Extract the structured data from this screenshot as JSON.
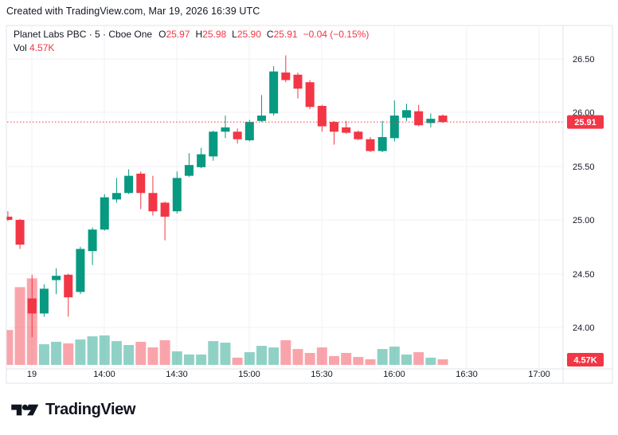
{
  "header": {
    "attribution": "Created with TradingView.com, Mar 19, 2026 16:39 UTC"
  },
  "legend": {
    "title": "Planet Labs PBC · 5 · Cboe One",
    "ohlc": [
      {
        "label": "O",
        "value": "25.97"
      },
      {
        "label": "H",
        "value": "25.98"
      },
      {
        "label": "L",
        "value": "25.90"
      },
      {
        "label": "C",
        "value": "25.91"
      }
    ],
    "change": "−0.04 (−0.15%)",
    "vol_label": "Vol",
    "vol_value": "4.57K"
  },
  "footer": {
    "brand": "TradingView"
  },
  "colors": {
    "up": "#089981",
    "down": "#F23645",
    "up_vol": "rgba(8,153,129,0.45)",
    "down_vol": "rgba(242,54,69,0.45)",
    "text": "#131722",
    "grid": "#F0F1F4",
    "border": "#E0E3EB",
    "badge": "#F23645",
    "badge_text": "#ffffff",
    "background": "#ffffff"
  },
  "chart_data": {
    "type": "candlestick_with_volume",
    "title": "Planet Labs PBC",
    "interval": "5",
    "exchange": "Cboe One",
    "ylim": [
      23.61,
      26.81
    ],
    "grid": true,
    "last_price": 25.91,
    "last_price_label": "25.91",
    "last_volume_label": "4.57K",
    "price_ticks": [
      "26.50",
      "26.00",
      "25.50",
      "25.00",
      "24.50",
      "24.00"
    ],
    "time_ticks": [
      {
        "label": "19",
        "index": 2
      },
      {
        "label": "14:00",
        "index": 8
      },
      {
        "label": "14:30",
        "index": 14
      },
      {
        "label": "15:00",
        "index": 20
      },
      {
        "label": "15:30",
        "index": 26
      },
      {
        "label": "16:00",
        "index": 32
      },
      {
        "label": "16:30",
        "index": 38
      },
      {
        "label": "17:00",
        "index": 44
      }
    ],
    "volume_unit": "K",
    "candles": [
      {
        "t": "13:20",
        "o": 25.03,
        "h": 25.08,
        "l": 24.99,
        "c": 25.0,
        "v": 28.6
      },
      {
        "t": "13:25",
        "o": 25.0,
        "h": 25.01,
        "l": 24.73,
        "c": 24.77,
        "v": 63.7
      },
      {
        "t": "13:30",
        "o": 24.27,
        "h": 24.49,
        "l": 23.91,
        "c": 24.13,
        "v": 70.9
      },
      {
        "t": "13:35",
        "o": 24.13,
        "h": 24.4,
        "l": 24.1,
        "c": 24.36,
        "v": 16.9
      },
      {
        "t": "13:40",
        "o": 24.44,
        "h": 24.55,
        "l": 24.31,
        "c": 24.48,
        "v": 18.9
      },
      {
        "t": "13:45",
        "o": 24.49,
        "h": 24.5,
        "l": 24.1,
        "c": 24.28,
        "v": 17.6
      },
      {
        "t": "13:50",
        "o": 24.33,
        "h": 24.75,
        "l": 24.31,
        "c": 24.73,
        "v": 20.8
      },
      {
        "t": "13:55",
        "o": 24.71,
        "h": 24.93,
        "l": 24.58,
        "c": 24.91,
        "v": 23.4
      },
      {
        "t": "14:00",
        "o": 24.91,
        "h": 25.24,
        "l": 24.9,
        "c": 25.21,
        "v": 24.1
      },
      {
        "t": "14:05",
        "o": 25.19,
        "h": 25.39,
        "l": 25.16,
        "c": 25.25,
        "v": 19.5
      },
      {
        "t": "14:10",
        "o": 25.25,
        "h": 25.47,
        "l": 25.24,
        "c": 25.41,
        "v": 16.3
      },
      {
        "t": "14:15",
        "o": 25.43,
        "h": 25.45,
        "l": 25.1,
        "c": 25.25,
        "v": 18.9
      },
      {
        "t": "14:20",
        "o": 25.25,
        "h": 25.41,
        "l": 25.04,
        "c": 25.08,
        "v": 14.3
      },
      {
        "t": "14:25",
        "o": 25.16,
        "h": 25.17,
        "l": 24.81,
        "c": 25.03,
        "v": 20.2
      },
      {
        "t": "14:30",
        "o": 25.08,
        "h": 25.45,
        "l": 25.06,
        "c": 25.39,
        "v": 11.1
      },
      {
        "t": "14:35",
        "o": 25.41,
        "h": 25.62,
        "l": 25.4,
        "c": 25.51,
        "v": 8.5
      },
      {
        "t": "14:40",
        "o": 25.49,
        "h": 25.67,
        "l": 25.48,
        "c": 25.61,
        "v": 8.5
      },
      {
        "t": "14:45",
        "o": 25.59,
        "h": 25.83,
        "l": 25.55,
        "c": 25.82,
        "v": 19.5
      },
      {
        "t": "14:50",
        "o": 25.82,
        "h": 25.97,
        "l": 25.76,
        "c": 25.86,
        "v": 18.2
      },
      {
        "t": "14:55",
        "o": 25.82,
        "h": 25.85,
        "l": 25.71,
        "c": 25.75,
        "v": 5.9
      },
      {
        "t": "15:00",
        "o": 25.74,
        "h": 25.93,
        "l": 25.73,
        "c": 25.91,
        "v": 10.4
      },
      {
        "t": "15:05",
        "o": 25.92,
        "h": 26.16,
        "l": 25.91,
        "c": 25.97,
        "v": 15.6
      },
      {
        "t": "15:10",
        "o": 25.99,
        "h": 26.43,
        "l": 25.97,
        "c": 26.38,
        "v": 14.3
      },
      {
        "t": "15:15",
        "o": 26.37,
        "h": 26.53,
        "l": 26.28,
        "c": 26.3,
        "v": 20.2
      },
      {
        "t": "15:20",
        "o": 26.35,
        "h": 26.37,
        "l": 26.13,
        "c": 26.22,
        "v": 13.0
      },
      {
        "t": "15:25",
        "o": 26.28,
        "h": 26.3,
        "l": 26.03,
        "c": 26.05,
        "v": 9.8
      },
      {
        "t": "15:30",
        "o": 26.06,
        "h": 26.07,
        "l": 25.82,
        "c": 25.87,
        "v": 14.3
      },
      {
        "t": "15:35",
        "o": 25.91,
        "h": 25.92,
        "l": 25.7,
        "c": 25.82,
        "v": 7.2
      },
      {
        "t": "15:40",
        "o": 25.86,
        "h": 25.92,
        "l": 25.8,
        "c": 25.81,
        "v": 9.8
      },
      {
        "t": "15:45",
        "o": 25.82,
        "h": 25.83,
        "l": 25.74,
        "c": 25.75,
        "v": 6.5
      },
      {
        "t": "15:50",
        "o": 25.75,
        "h": 25.77,
        "l": 25.63,
        "c": 25.64,
        "v": 4.6
      },
      {
        "t": "15:55",
        "o": 25.64,
        "h": 25.92,
        "l": 25.63,
        "c": 25.77,
        "v": 13.0
      },
      {
        "t": "16:00",
        "o": 25.76,
        "h": 26.11,
        "l": 25.73,
        "c": 25.97,
        "v": 15.0
      },
      {
        "t": "16:05",
        "o": 25.95,
        "h": 26.08,
        "l": 25.92,
        "c": 26.02,
        "v": 8.5
      },
      {
        "t": "16:10",
        "o": 26.01,
        "h": 26.07,
        "l": 25.87,
        "c": 25.88,
        "v": 10.4
      },
      {
        "t": "16:15",
        "o": 25.9,
        "h": 25.99,
        "l": 25.86,
        "c": 25.94,
        "v": 5.9
      },
      {
        "t": "16:20",
        "o": 25.97,
        "h": 25.98,
        "l": 25.9,
        "c": 25.91,
        "v": 4.57
      }
    ]
  }
}
